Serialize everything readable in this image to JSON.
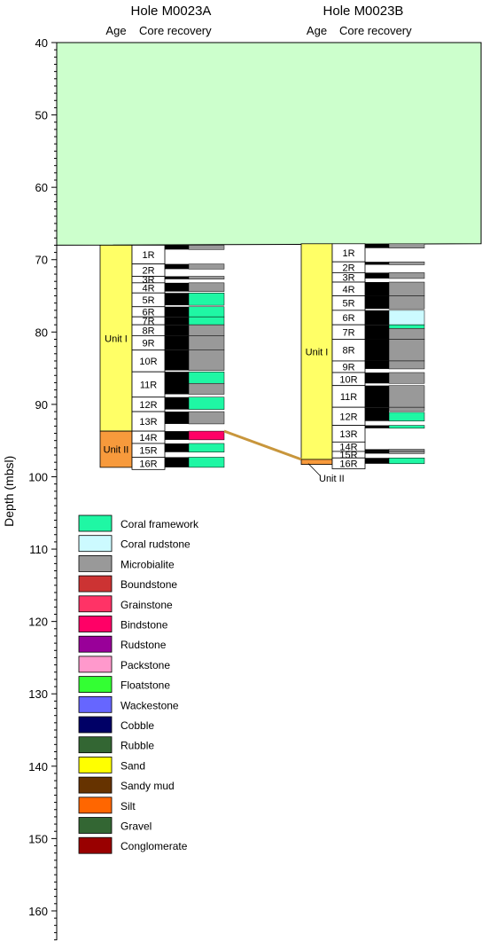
{
  "axis": {
    "label": "Depth (mbsl)",
    "min": 40,
    "max": 165,
    "ticks": [
      40,
      50,
      60,
      70,
      80,
      90,
      100,
      110,
      120,
      130,
      140,
      150,
      160
    ]
  },
  "holes": [
    {
      "id": "A",
      "title": "Hole M0023A",
      "age_header": "Age",
      "recovery_header": "Core recovery",
      "units": [
        {
          "label": "Unit I",
          "top": 68.0,
          "bottom": 93.7,
          "color": "#ffff66"
        },
        {
          "label": "Unit II",
          "top": 93.7,
          "bottom": 98.7,
          "color": "#f79a3c"
        }
      ],
      "cores": [
        {
          "label": "1R",
          "top": 68.0,
          "bottom": 70.6,
          "recovery": [
            [
              68.0,
              68.6,
              "microbialite"
            ]
          ]
        },
        {
          "label": "2R",
          "top": 70.6,
          "bottom": 72.3,
          "recovery": [
            [
              70.6,
              71.3,
              "microbialite"
            ]
          ]
        },
        {
          "label": "3R",
          "top": 72.3,
          "bottom": 73.2,
          "recovery": [
            [
              72.3,
              72.7,
              "microbialite"
            ]
          ]
        },
        {
          "label": "4R",
          "top": 73.2,
          "bottom": 74.6,
          "recovery": [
            [
              73.2,
              74.4,
              "microbialite"
            ]
          ]
        },
        {
          "label": "5R",
          "top": 74.6,
          "bottom": 76.5,
          "recovery": [
            [
              74.6,
              76.3,
              "coral-framework"
            ]
          ]
        },
        {
          "label": "6R",
          "top": 76.5,
          "bottom": 77.9,
          "recovery": [
            [
              76.5,
              77.9,
              "coral-framework"
            ]
          ]
        },
        {
          "label": "7R",
          "top": 77.9,
          "bottom": 79.0,
          "recovery": [
            [
              77.9,
              79.0,
              "coral-framework"
            ]
          ]
        },
        {
          "label": "8R",
          "top": 79.0,
          "bottom": 80.5,
          "recovery": [
            [
              79.0,
              80.5,
              "microbialite"
            ]
          ]
        },
        {
          "label": "9R",
          "top": 80.5,
          "bottom": 82.5,
          "recovery": [
            [
              80.5,
              82.5,
              "microbialite"
            ]
          ]
        },
        {
          "label": "10R",
          "top": 82.5,
          "bottom": 85.5,
          "recovery": [
            [
              82.5,
              85.3,
              "microbialite"
            ]
          ]
        },
        {
          "label": "11R",
          "top": 85.5,
          "bottom": 89.0,
          "recovery": [
            [
              85.5,
              87.1,
              "coral-framework"
            ],
            [
              87.1,
              88.6,
              "microbialite"
            ]
          ]
        },
        {
          "label": "12R",
          "top": 89.0,
          "bottom": 91.0,
          "recovery": [
            [
              89.0,
              90.7,
              "coral-framework"
            ]
          ]
        },
        {
          "label": "13R",
          "top": 91.0,
          "bottom": 93.7,
          "recovery": [
            [
              91.0,
              92.7,
              "microbialite"
            ]
          ]
        },
        {
          "label": "14R",
          "top": 93.7,
          "bottom": 95.4,
          "recovery": [
            [
              93.7,
              94.9,
              "bindstone"
            ]
          ]
        },
        {
          "label": "15R",
          "top": 95.4,
          "bottom": 97.3,
          "recovery": [
            [
              95.4,
              96.6,
              "coral-framework"
            ]
          ]
        },
        {
          "label": "16R",
          "top": 97.3,
          "bottom": 99.0,
          "recovery": [
            [
              97.3,
              98.7,
              "coral-framework"
            ]
          ]
        }
      ]
    },
    {
      "id": "B",
      "title": "Hole M0023B",
      "age_header": "Age",
      "recovery_header": "Core recovery",
      "units": [
        {
          "label": "Unit I",
          "top": 67.8,
          "bottom": 97.6,
          "color": "#ffff66"
        },
        {
          "label": "Unit II",
          "top": 97.6,
          "bottom": 98.3,
          "color": "#f79a3c"
        }
      ],
      "cores": [
        {
          "label": "1R",
          "top": 67.8,
          "bottom": 70.3,
          "recovery": [
            [
              67.8,
              68.4,
              "microbialite"
            ]
          ]
        },
        {
          "label": "2R",
          "top": 70.3,
          "bottom": 71.8,
          "recovery": [
            [
              70.3,
              70.7,
              "microbialite"
            ]
          ]
        },
        {
          "label": "3R",
          "top": 71.8,
          "bottom": 73.1,
          "recovery": [
            [
              71.8,
              72.6,
              "microbialite"
            ]
          ]
        },
        {
          "label": "4R",
          "top": 73.1,
          "bottom": 75.0,
          "recovery": [
            [
              73.1,
              75.0,
              "microbialite"
            ]
          ]
        },
        {
          "label": "5R",
          "top": 75.0,
          "bottom": 77.0,
          "recovery": [
            [
              75.0,
              76.8,
              "microbialite"
            ]
          ]
        },
        {
          "label": "6R",
          "top": 77.0,
          "bottom": 79.0,
          "recovery": [
            [
              77.0,
              79.0,
              "coral-rudstone"
            ]
          ]
        },
        {
          "label": "7R",
          "top": 79.0,
          "bottom": 81.0,
          "recovery": [
            [
              79.0,
              79.5,
              "coral-framework"
            ],
            [
              79.5,
              81.0,
              "microbialite"
            ]
          ]
        },
        {
          "label": "8R",
          "top": 81.0,
          "bottom": 84.0,
          "recovery": [
            [
              81.0,
              84.0,
              "microbialite"
            ]
          ]
        },
        {
          "label": "9R",
          "top": 84.0,
          "bottom": 85.6,
          "recovery": [
            [
              84.0,
              85.1,
              "microbialite"
            ]
          ]
        },
        {
          "label": "10R",
          "top": 85.6,
          "bottom": 87.4,
          "recovery": [
            [
              85.6,
              87.1,
              "microbialite"
            ]
          ]
        },
        {
          "label": "11R",
          "top": 87.4,
          "bottom": 90.4,
          "recovery": [
            [
              87.4,
              90.4,
              "microbialite"
            ]
          ]
        },
        {
          "label": "12R",
          "top": 90.4,
          "bottom": 92.9,
          "recovery": [
            [
              90.4,
              90.9,
              "microbialite"
            ],
            [
              91.1,
              92.3,
              "coral-framework"
            ]
          ]
        },
        {
          "label": "13R",
          "top": 92.9,
          "bottom": 95.2,
          "recovery": [
            [
              92.9,
              93.3,
              "coral-framework"
            ]
          ]
        },
        {
          "label": "14R",
          "top": 95.2,
          "bottom": 96.5,
          "recovery": [
            [
              96.2,
              96.5,
              "microbialite"
            ]
          ]
        },
        {
          "label": "15R",
          "top": 96.5,
          "bottom": 97.4,
          "recovery": [
            [
              96.5,
              96.8,
              "microbialite"
            ]
          ]
        },
        {
          "label": "16R",
          "top": 97.4,
          "bottom": 98.9,
          "recovery": [
            [
              97.4,
              98.2,
              "coral-framework"
            ]
          ]
        }
      ]
    }
  ],
  "seafloor_fill": {
    "color": "#ccffcc",
    "top": 40,
    "bottom_left": 68.0,
    "bottom_right": 67.8
  },
  "correlation_line_color": "#c8963c",
  "unit2_callout": "Unit II",
  "legend": [
    {
      "key": "coral-framework",
      "label": "Coral framework",
      "color": "#1ff7a4"
    },
    {
      "key": "coral-rudstone",
      "label": "Coral rudstone",
      "color": "#ccfaff"
    },
    {
      "key": "microbialite",
      "label": "Microbialite",
      "color": "#999999"
    },
    {
      "key": "boundstone",
      "label": "Boundstone",
      "color": "#cc3333"
    },
    {
      "key": "grainstone",
      "label": "Grainstone",
      "color": "#ff3366"
    },
    {
      "key": "bindstone",
      "label": "Bindstone",
      "color": "#ff0066"
    },
    {
      "key": "rudstone",
      "label": "Rudstone",
      "color": "#990099"
    },
    {
      "key": "packstone",
      "label": "Packstone",
      "color": "#ff99cc"
    },
    {
      "key": "floatstone",
      "label": "Floatstone",
      "color": "#33ff33"
    },
    {
      "key": "wackestone",
      "label": "Wackestone",
      "color": "#6666ff"
    },
    {
      "key": "cobble",
      "label": "Cobble",
      "color": "#000066"
    },
    {
      "key": "rubble",
      "label": "Rubble",
      "color": "#336633"
    },
    {
      "key": "sand",
      "label": "Sand",
      "color": "#ffff00"
    },
    {
      "key": "sandy-mud",
      "label": "Sandy mud",
      "color": "#663300"
    },
    {
      "key": "silt",
      "label": "Silt",
      "color": "#ff6600"
    },
    {
      "key": "gravel",
      "label": "Gravel",
      "color": "#336633"
    },
    {
      "key": "conglomerate",
      "label": "Conglomerate",
      "color": "#990000"
    }
  ]
}
